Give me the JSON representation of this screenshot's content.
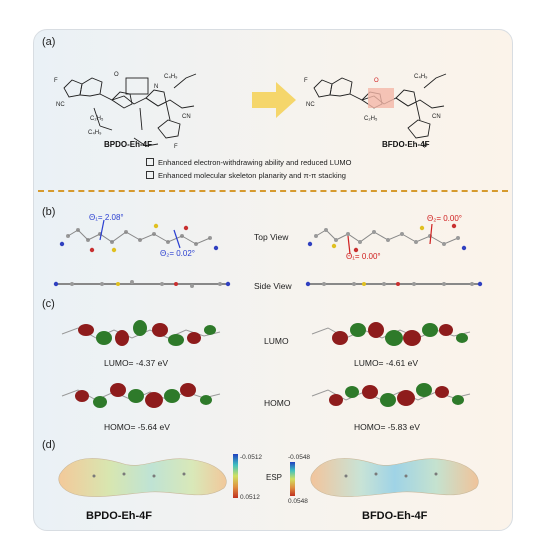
{
  "panel_a": {
    "label": "(a)",
    "left_molecule": "BPDO-Eh-4F",
    "right_molecule": "BFDO-Eh-4F",
    "bullets": [
      "Enhanced electron-withdrawing ability and reduced LUMO",
      "Enhanced molecular skeleton planarity and π-π stacking"
    ]
  },
  "panel_b": {
    "label": "(b)",
    "top_view": "Top View",
    "side_view": "Side View",
    "left_theta1": "Θ₁= 2.08°",
    "left_theta2": "Θ₂= 0.02°",
    "right_theta1": "Θ₁= 0.00°",
    "right_theta2": "Θ₂= 0.00°"
  },
  "panel_c": {
    "label": "(c)",
    "lumo_label": "LUMO",
    "homo_label": "HOMO",
    "left_lumo": "LUMO= -4.37 eV",
    "right_lumo": "LUMO= -4.61 eV",
    "left_homo": "HOMO= -5.64 eV",
    "right_homo": "HOMO= -5.83 eV"
  },
  "panel_d": {
    "label": "(d)",
    "esp_label": "ESP",
    "left_scale_top": "-0.0512",
    "left_scale_bottom": "0.0512",
    "right_scale_top": "-0.0548",
    "right_scale_bottom": "0.0548",
    "left_name": "BPDO-Eh-4F",
    "right_name": "BFDO-Eh-4F"
  },
  "colors": {
    "accent_orange": "#d69a2e",
    "arrow_yellow": "#f5d66b",
    "blue_angle": "#2a3fd1",
    "red_angle": "#d02020",
    "orbital_red": "#8e1c1c",
    "orbital_green": "#2e7a2a"
  }
}
